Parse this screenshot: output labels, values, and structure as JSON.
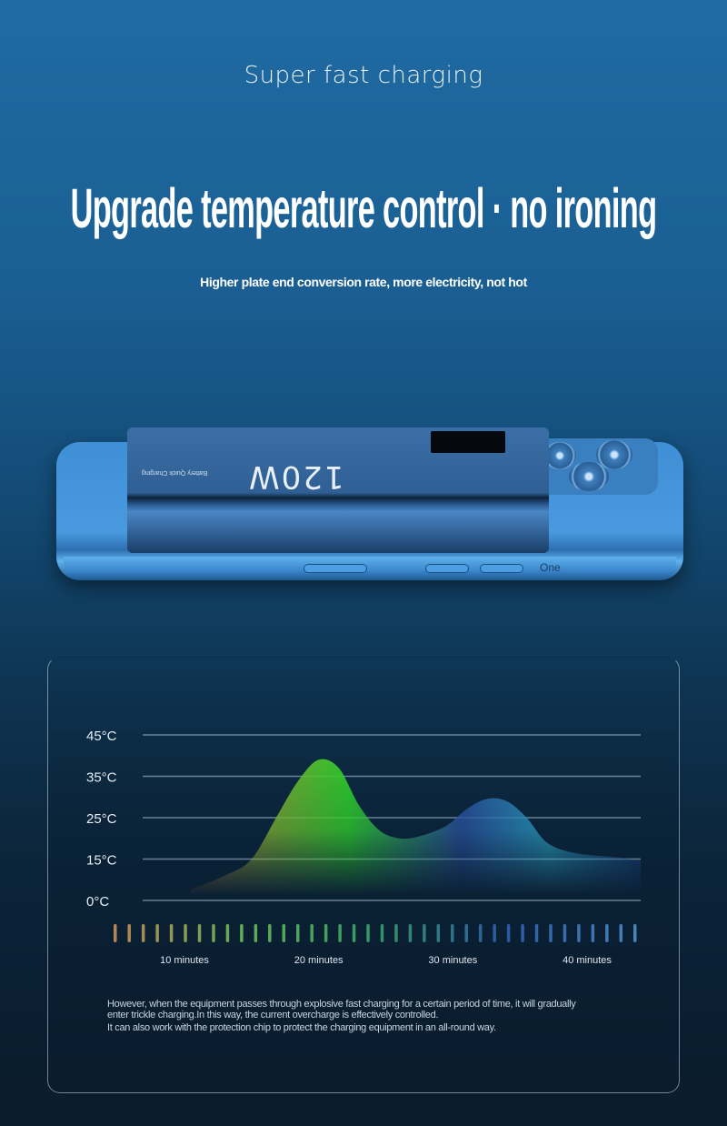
{
  "header": {
    "kicker": "Super fast charging",
    "headline": "Upgrade temperature control · no ironing",
    "subheadline": "Higher plate end conversion rate, more electricity, not hot"
  },
  "product": {
    "power_bank_label": "120W",
    "power_bank_small_text": "Battery Quick Charging",
    "phone_label": "One"
  },
  "chart_data": {
    "type": "area",
    "title": "",
    "xlabel": "",
    "ylabel": "",
    "y_ticks": [
      "45°C",
      "35°C",
      "25°C",
      "15°C",
      "0°C"
    ],
    "y_tick_values": [
      45,
      35,
      25,
      15,
      0
    ],
    "x_ticks": [
      "10 minutes",
      "20 minutes",
      "30 minutes",
      "40 minutes"
    ],
    "x_tick_values": [
      10,
      20,
      30,
      40
    ],
    "grid": true,
    "x": [
      10.5,
      13,
      15,
      17,
      18.5,
      20,
      21.5,
      23,
      24.5,
      26,
      27.5,
      29.5,
      31,
      32.5,
      34,
      35.5,
      37,
      39,
      42,
      44
    ],
    "values": [
      4,
      9,
      15,
      26,
      34,
      39,
      37,
      28,
      22,
      20,
      20.5,
      23,
      27,
      29.5,
      29,
      25,
      19,
      16.5,
      15.5,
      14.5
    ],
    "gradient_colors": [
      "#d08a3a",
      "#2fd02a",
      "#2a5fae",
      "#2aa0c0"
    ],
    "time_bar_count": 38
  },
  "description": {
    "line1": "However, when the equipment passes through explosive fast charging for a certain period of time, it will gradually enter trickle charging.In this way, the current overcharge is effectively controlled.",
    "line2": "It can also work with the protection chip to protect the charging equipment in an all-round way."
  }
}
